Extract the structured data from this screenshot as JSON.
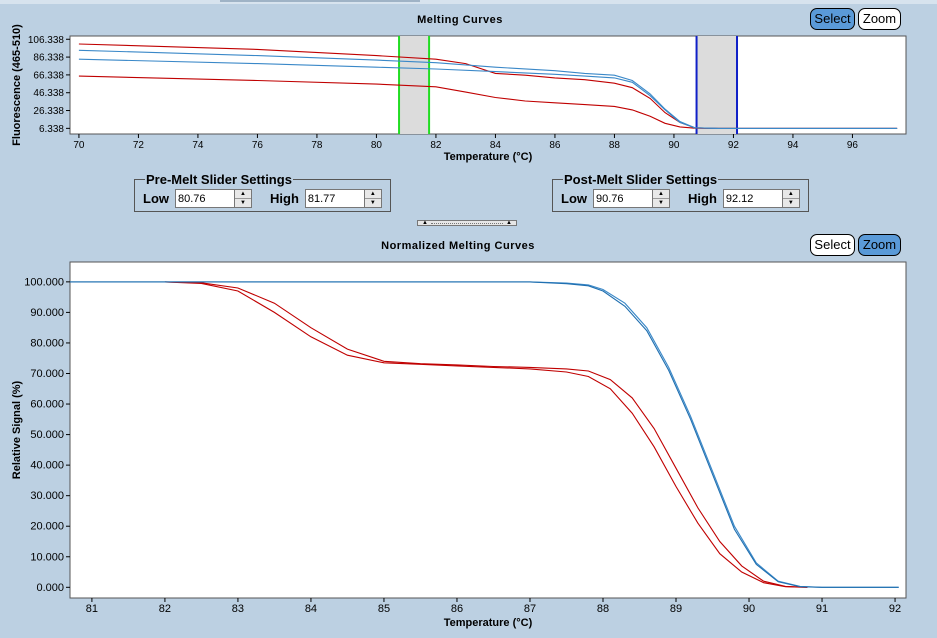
{
  "top_panel": {
    "title": "Melting Curves",
    "select_label": "Select",
    "zoom_label": "Zoom",
    "active_mode": "select",
    "chart_data": {
      "type": "line",
      "xlabel": "Temperature (°C)",
      "ylabel": "Fluorescence (465-510)",
      "xlim": [
        69.7,
        97.8
      ],
      "ylim": [
        0,
        110
      ],
      "x_ticks": [
        "70",
        "72",
        "74",
        "76",
        "78",
        "80",
        "82",
        "84",
        "86",
        "88",
        "90",
        "92",
        "94",
        "96"
      ],
      "y_ticks": [
        "106.338",
        "86.338",
        "66.338",
        "46.338",
        "26.338",
        "6.338"
      ],
      "pre_melt_region": [
        80.76,
        81.77
      ],
      "post_melt_region": [
        90.76,
        92.12
      ],
      "series": [
        {
          "color": "#c00000",
          "x": [
            70,
            76,
            80,
            82,
            83,
            84,
            85,
            86,
            87,
            88,
            88.6,
            89.2,
            89.7,
            90.2,
            90.7,
            91.5,
            94,
            97.5
          ],
          "y": [
            101,
            95,
            88,
            84,
            79,
            68,
            66,
            63,
            61,
            57,
            52,
            40,
            24,
            13,
            7,
            6.3,
            6.3,
            6.3
          ]
        },
        {
          "color": "#c00000",
          "x": [
            70,
            76,
            80,
            82,
            83,
            84,
            85,
            86,
            87,
            88,
            88.6,
            89.2,
            89.7,
            90.2,
            90.7,
            91.5,
            94,
            97.5
          ],
          "y": [
            65,
            60,
            56,
            53,
            47,
            41,
            37,
            35,
            33,
            31,
            27,
            20,
            12,
            8,
            6.5,
            6.3,
            6.3,
            6.3
          ]
        },
        {
          "color": "#3a88c8",
          "x": [
            70,
            76,
            80,
            82,
            84,
            86,
            87,
            88,
            88.6,
            89.2,
            89.7,
            90.2,
            90.7,
            91.5,
            94,
            97.5
          ],
          "y": [
            94,
            88,
            83,
            80,
            75,
            71,
            68,
            66,
            60,
            45,
            28,
            14,
            7,
            6.3,
            6.3,
            6.3
          ]
        },
        {
          "color": "#3a88c8",
          "x": [
            70,
            76,
            80,
            82,
            84,
            86,
            87,
            88,
            88.6,
            89.2,
            89.7,
            90.2,
            90.7,
            91.5,
            94,
            97.5
          ],
          "y": [
            84,
            79,
            75,
            73,
            70,
            67,
            65,
            63,
            58,
            43,
            27,
            13,
            7,
            6.3,
            6.3,
            6.3
          ]
        }
      ]
    }
  },
  "pre_melt": {
    "legend": "Pre-Melt Slider Settings",
    "low_label": "Low",
    "low_value": "80.76",
    "high_label": "High",
    "high_value": "81.77"
  },
  "post_melt": {
    "legend": "Post-Melt Slider Settings",
    "low_label": "Low",
    "low_value": "90.76",
    "high_label": "High",
    "high_value": "92.12"
  },
  "bottom_panel": {
    "title": "Normalized Melting Curves",
    "select_label": "Select",
    "zoom_label": "Zoom",
    "active_mode": "zoom",
    "chart_data": {
      "type": "line",
      "xlabel": "Temperature (°C)",
      "ylabel": "Relative Signal (%)",
      "xlim": [
        80.7,
        92.15
      ],
      "ylim": [
        -3.5,
        106.5
      ],
      "x_ticks": [
        "81",
        "82",
        "83",
        "84",
        "85",
        "86",
        "87",
        "88",
        "89",
        "90",
        "91",
        "92"
      ],
      "y_ticks": [
        "100.000",
        "90.000",
        "80.000",
        "70.000",
        "60.000",
        "50.000",
        "40.000",
        "30.000",
        "20.000",
        "10.000",
        "0.000"
      ],
      "series": [
        {
          "color": "#c00000",
          "x": [
            82,
            82.5,
            83,
            83.5,
            84,
            84.5,
            85,
            85.5,
            86,
            86.5,
            87,
            87.5,
            87.8,
            88.1,
            88.4,
            88.7,
            89,
            89.3,
            89.6,
            89.9,
            90.2,
            90.5,
            90.8
          ],
          "y": [
            100,
            99.5,
            97,
            90,
            82,
            76,
            73.5,
            73,
            72.5,
            72,
            71.5,
            70.5,
            69,
            65,
            57,
            46,
            33,
            21,
            11,
            5,
            1.5,
            0.2,
            0
          ]
        },
        {
          "color": "#c00000",
          "x": [
            82,
            82.5,
            83,
            83.5,
            84,
            84.5,
            85,
            85.5,
            86,
            86.5,
            87,
            87.5,
            87.8,
            88.1,
            88.4,
            88.7,
            89,
            89.3,
            89.6,
            89.9,
            90.2,
            90.5,
            90.8
          ],
          "y": [
            100,
            99.7,
            98,
            93,
            85,
            78,
            74,
            73.2,
            72.8,
            72.3,
            72,
            71.5,
            70.8,
            68,
            62,
            52,
            39,
            26,
            15,
            7,
            2,
            0.3,
            0
          ]
        },
        {
          "color": "#3a88c8",
          "x": [
            80.7,
            82,
            84,
            86,
            87,
            87.5,
            87.8,
            88,
            88.3,
            88.6,
            88.9,
            89.2,
            89.5,
            89.8,
            90.1,
            90.4,
            90.7,
            91,
            92.05
          ],
          "y": [
            100,
            100,
            100,
            100,
            100,
            99.6,
            99,
            97.5,
            93,
            85,
            72,
            56,
            38,
            20,
            8,
            2,
            0.3,
            0,
            0
          ]
        },
        {
          "color": "#1f6fb0",
          "x": [
            80.7,
            82,
            84,
            86,
            87,
            87.5,
            87.8,
            88,
            88.3,
            88.6,
            88.9,
            89.2,
            89.5,
            89.8,
            90.1,
            90.4,
            90.7,
            91,
            92.05
          ],
          "y": [
            100,
            100,
            100,
            100,
            100,
            99.4,
            98.7,
            97,
            92,
            84,
            71,
            55,
            37,
            19,
            7.5,
            1.8,
            0.2,
            0,
            0
          ]
        }
      ]
    }
  }
}
